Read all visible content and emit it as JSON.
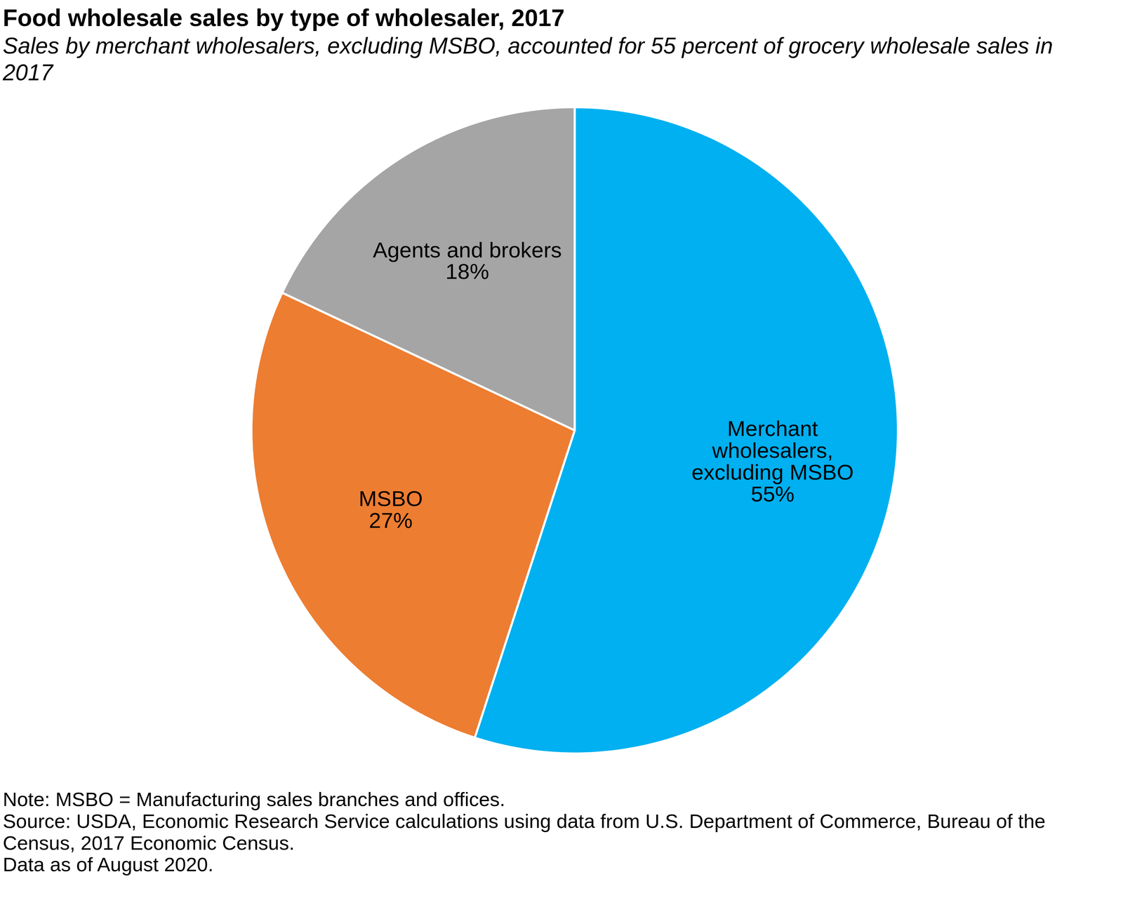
{
  "chart_data": {
    "type": "pie",
    "title": "Food wholesale sales by type of wholesaler, 2017",
    "subtitle": "Sales by merchant wholesalers, excluding MSBO, accounted for 55 percent of grocery wholesale sales in 2017",
    "categories": [
      "Merchant\nwholesalers,\nexcluding MSBO",
      "MSBO",
      "Agents and brokers"
    ],
    "values": [
      55,
      27,
      18
    ],
    "value_labels": [
      "55%",
      "27%",
      "18%"
    ],
    "colors": [
      "#00b0f0",
      "#ed7d31",
      "#a5a5a5"
    ],
    "data_labels": true,
    "caption": [
      "Note: MSBO = Manufacturing sales branches and offices.",
      "Source: USDA, Economic Research Service calculations using data from U.S. Department of Commerce, Bureau of the Census, 2017 Economic Census.",
      "Data as of August 2020."
    ]
  }
}
